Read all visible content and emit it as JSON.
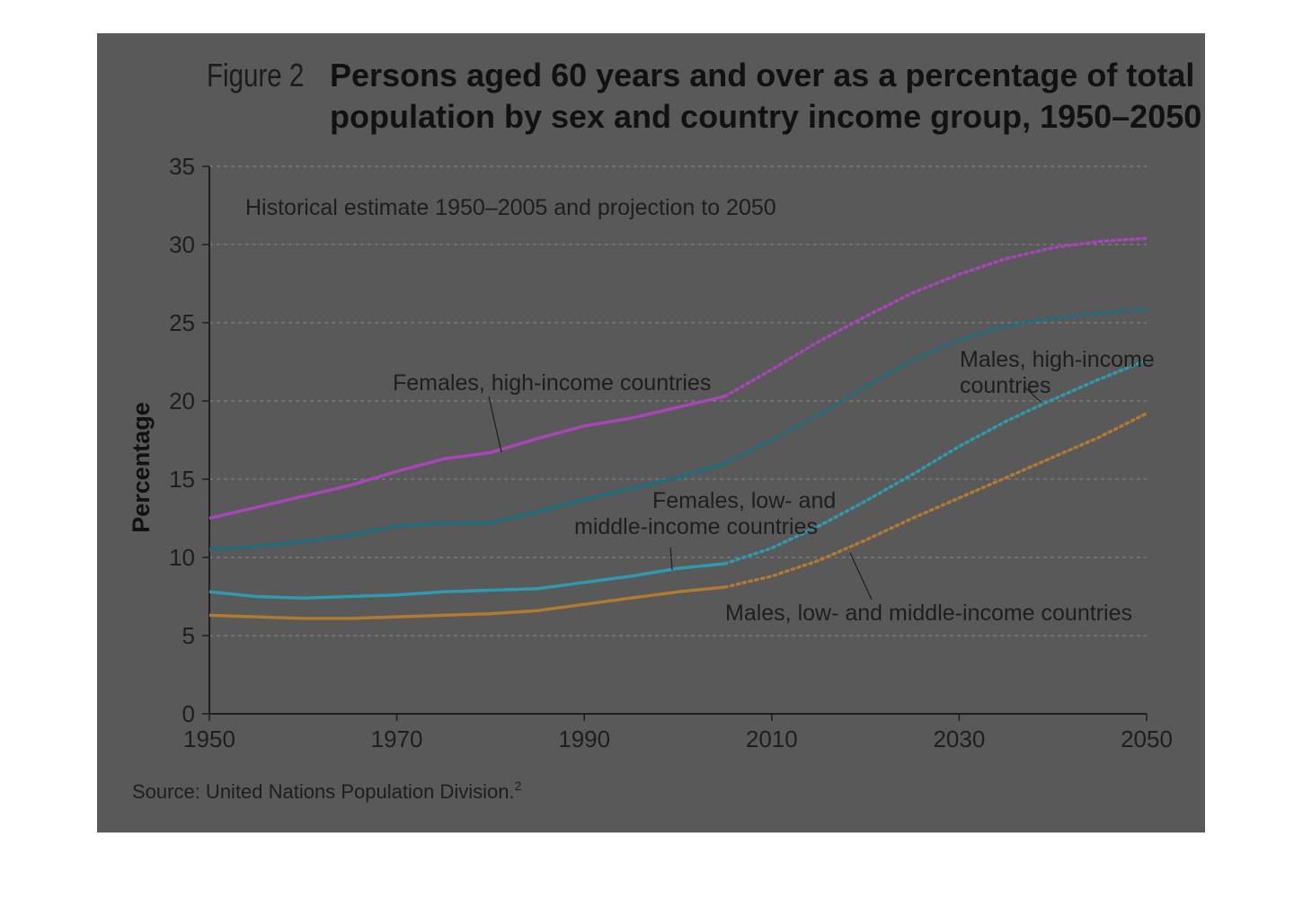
{
  "figure": {
    "prefix": "Figure 2",
    "title_line1": "Persons aged 60 years and over as a percentage of total",
    "title_line2": "population by sex and country income group, 1950–2050",
    "subtitle": "Historical estimate 1950–2005 and projection to 2050",
    "source": "Source: United Nations Population Division.",
    "source_note": "2"
  },
  "chart_data": {
    "type": "line",
    "title": "Persons aged 60 years and over as a percentage of total population by sex and country income group, 1950–2050",
    "subtitle": "Historical estimate 1950–2005 and projection to 2050",
    "xlabel": "",
    "ylabel": "Percentage",
    "xlim": [
      1950,
      2050
    ],
    "ylim": [
      0,
      35
    ],
    "x_ticks": [
      1950,
      1970,
      1990,
      2010,
      2030,
      2050
    ],
    "y_ticks": [
      0,
      5,
      10,
      15,
      20,
      25,
      30,
      35
    ],
    "grid": "horizontal dashed",
    "historical_end": 2005,
    "x": [
      1950,
      1955,
      1960,
      1965,
      1970,
      1975,
      1980,
      1985,
      1990,
      1995,
      2000,
      2005,
      2010,
      2015,
      2020,
      2025,
      2030,
      2035,
      2040,
      2045,
      2050
    ],
    "series": [
      {
        "name": "Females, high-income countries",
        "color": "#a846b9",
        "values": [
          12.5,
          13.2,
          13.9,
          14.6,
          15.5,
          16.3,
          16.7,
          17.6,
          18.4,
          18.9,
          19.6,
          20.3,
          22.0,
          23.8,
          25.4,
          26.9,
          28.1,
          29.1,
          29.8,
          30.2,
          30.4
        ]
      },
      {
        "name": "Males, high-income countries",
        "color": "#1d6e7e",
        "values": [
          10.5,
          10.7,
          11.0,
          11.4,
          12.0,
          12.2,
          12.2,
          12.9,
          13.7,
          14.4,
          15.1,
          16.0,
          17.5,
          19.1,
          20.9,
          22.6,
          23.9,
          24.8,
          25.3,
          25.6,
          25.9
        ]
      },
      {
        "name": "Females, low- and middle-income countries",
        "color": "#2e9ab0",
        "values": [
          7.8,
          7.5,
          7.4,
          7.5,
          7.6,
          7.8,
          7.9,
          8.0,
          8.4,
          8.8,
          9.3,
          9.6,
          10.6,
          12.0,
          13.6,
          15.3,
          17.1,
          18.7,
          20.1,
          21.4,
          22.6
        ]
      },
      {
        "name": "Males, low- and middle-income countries",
        "color": "#b07a33",
        "values": [
          6.3,
          6.2,
          6.1,
          6.1,
          6.2,
          6.3,
          6.4,
          6.6,
          7.0,
          7.4,
          7.8,
          8.1,
          8.8,
          9.8,
          11.1,
          12.5,
          13.8,
          15.1,
          16.4,
          17.7,
          19.2
        ]
      }
    ],
    "annotations": [
      "Females, high-income countries",
      "Males, high-income",
      "countries",
      "Females, low- and",
      "middle-income countries",
      "Males, low- and middle-income countries"
    ]
  }
}
